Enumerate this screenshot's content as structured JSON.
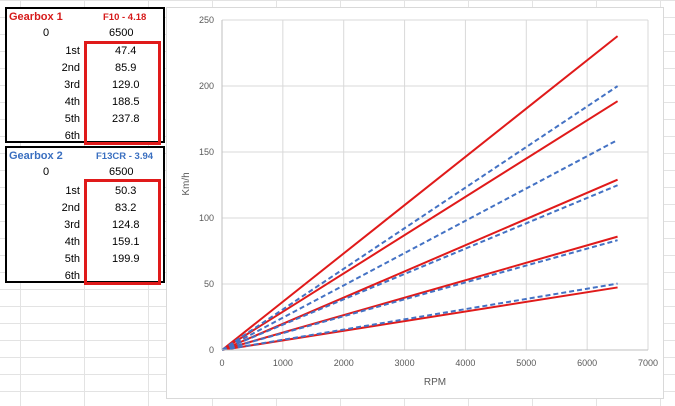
{
  "tables": [
    {
      "title": "Gearbox 1",
      "subtitle": "F10 - 4.18",
      "title_color": "#d61a1a",
      "rpm_label": "0",
      "rpm_value": "6500",
      "gears": [
        {
          "label": "1st",
          "value": "47.4"
        },
        {
          "label": "2nd",
          "value": "85.9"
        },
        {
          "label": "3rd",
          "value": "129.0"
        },
        {
          "label": "4th",
          "value": "188.5"
        },
        {
          "label": "5th",
          "value": "237.8"
        },
        {
          "label": "6th",
          "value": ""
        }
      ]
    },
    {
      "title": "Gearbox 2",
      "subtitle": "F13CR - 3.94",
      "title_color": "#3a6fc0",
      "rpm_label": "0",
      "rpm_value": "6500",
      "gears": [
        {
          "label": "1st",
          "value": "50.3"
        },
        {
          "label": "2nd",
          "value": "83.2"
        },
        {
          "label": "3rd",
          "value": "124.8"
        },
        {
          "label": "4th",
          "value": "159.1"
        },
        {
          "label": "5th",
          "value": "199.9"
        },
        {
          "label": "6th",
          "value": ""
        }
      ]
    }
  ],
  "chart_data": {
    "type": "line",
    "title": "",
    "xlabel": "RPM",
    "ylabel": "Km/h",
    "xlim": [
      0,
      7000
    ],
    "ylim": [
      0,
      250
    ],
    "xticks": [
      0,
      1000,
      2000,
      3000,
      4000,
      5000,
      6000,
      7000
    ],
    "yticks": [
      0,
      50,
      100,
      150,
      200,
      250
    ],
    "grid": true,
    "series": [
      {
        "color": "#e01a1a",
        "dashed": false,
        "x": [
          0,
          6500
        ],
        "y": [
          0,
          47.4
        ]
      },
      {
        "color": "#e01a1a",
        "dashed": false,
        "x": [
          0,
          6500
        ],
        "y": [
          0,
          85.9
        ]
      },
      {
        "color": "#e01a1a",
        "dashed": false,
        "x": [
          0,
          6500
        ],
        "y": [
          0,
          129.0
        ]
      },
      {
        "color": "#e01a1a",
        "dashed": false,
        "x": [
          0,
          6500
        ],
        "y": [
          0,
          188.5
        ]
      },
      {
        "color": "#e01a1a",
        "dashed": false,
        "x": [
          0,
          6500
        ],
        "y": [
          0,
          237.8
        ]
      },
      {
        "color": "#4472c4",
        "dashed": true,
        "x": [
          0,
          6500
        ],
        "y": [
          0,
          50.3
        ]
      },
      {
        "color": "#4472c4",
        "dashed": true,
        "x": [
          0,
          6500
        ],
        "y": [
          0,
          83.2
        ]
      },
      {
        "color": "#4472c4",
        "dashed": true,
        "x": [
          0,
          6500
        ],
        "y": [
          0,
          124.8
        ]
      },
      {
        "color": "#4472c4",
        "dashed": true,
        "x": [
          0,
          6500
        ],
        "y": [
          0,
          159.1
        ]
      },
      {
        "color": "#4472c4",
        "dashed": true,
        "x": [
          0,
          6500
        ],
        "y": [
          0,
          199.9
        ]
      }
    ]
  }
}
